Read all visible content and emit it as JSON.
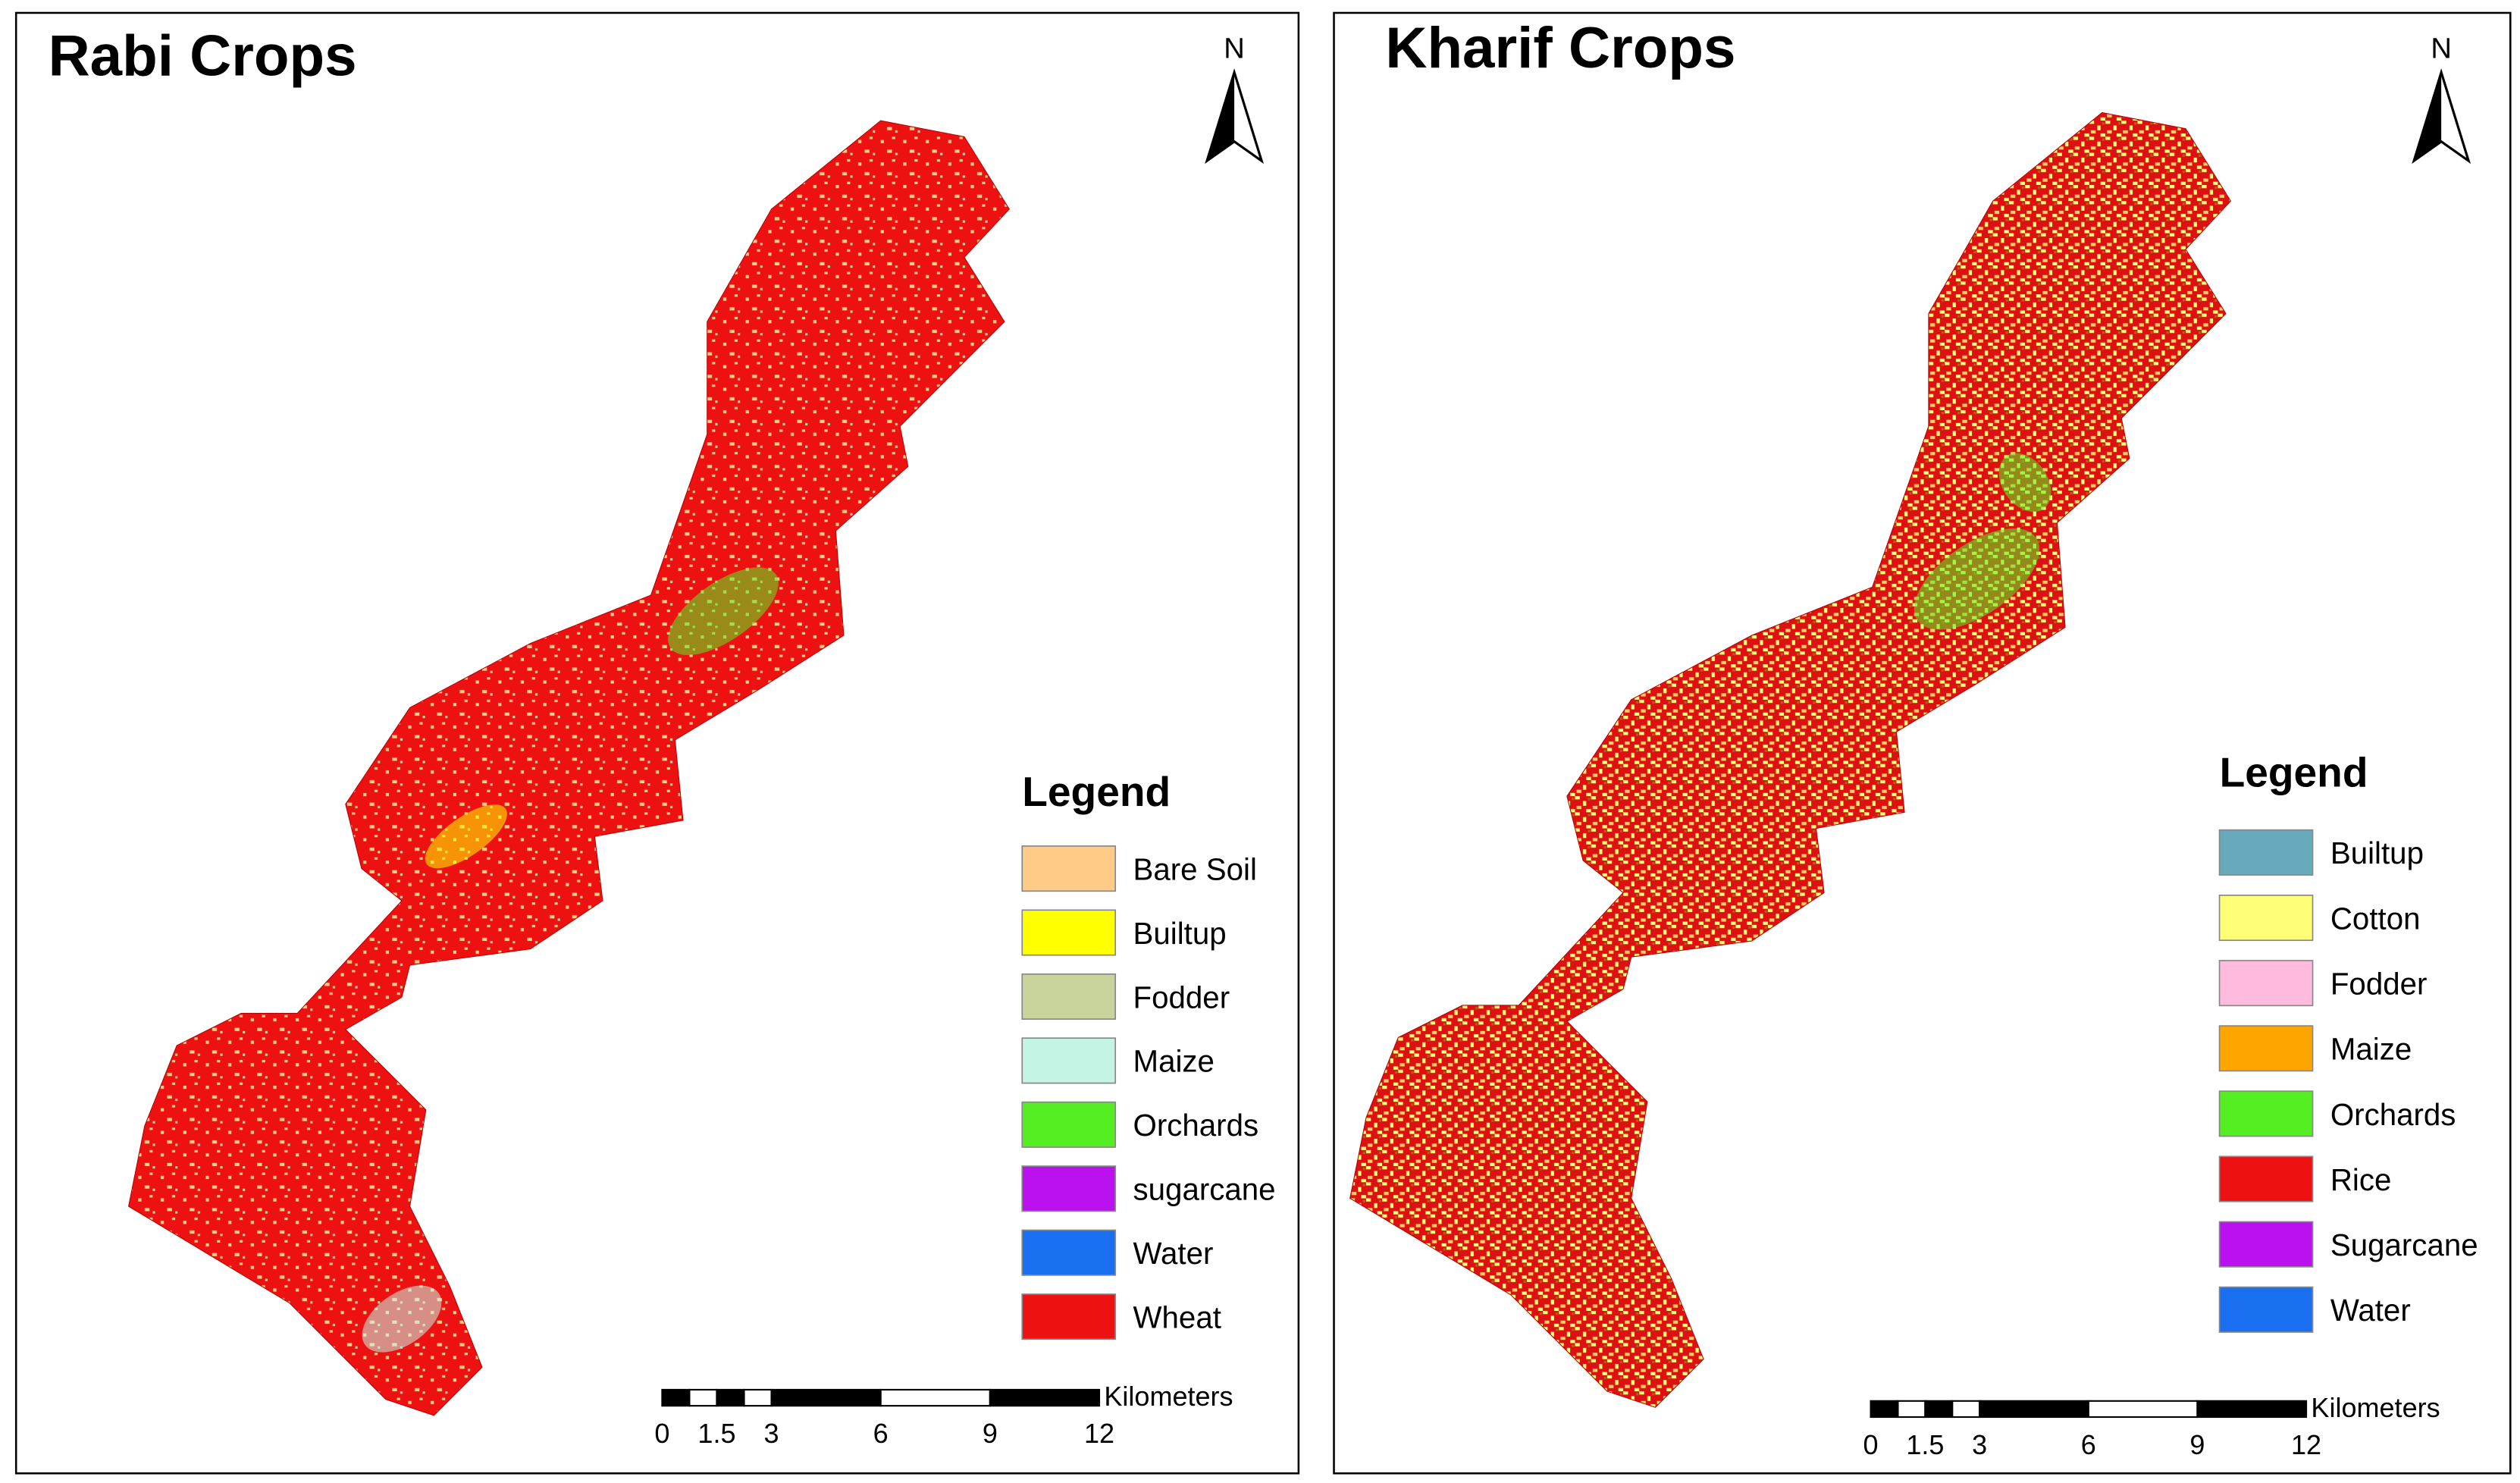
{
  "panels": [
    {
      "title": "Rabi Crops",
      "north": "N",
      "legend": {
        "title": "Legend",
        "items": [
          {
            "label": "Bare Soil",
            "color": "#ffcc88"
          },
          {
            "label": "Builtup",
            "color": "#ffff00"
          },
          {
            "label": "Fodder",
            "color": "#c8d49c"
          },
          {
            "label": "Maize",
            "color": "#c4f5e4"
          },
          {
            "label": "Orchards",
            "color": "#55ee22"
          },
          {
            "label": "sugarcane",
            "color": "#bb11ee"
          },
          {
            "label": "Water",
            "color": "#1a6ef0"
          },
          {
            "label": "Wheat",
            "color": "#ee1111"
          }
        ]
      },
      "scale_bar": {
        "unit": "Kilometers",
        "ticks": [
          0,
          1.5,
          3,
          6,
          9,
          12
        ]
      }
    },
    {
      "title": "Kharif Crops",
      "north": "N",
      "legend": {
        "title": "Legend",
        "items": [
          {
            "label": "Builtup",
            "color": "#66aabb"
          },
          {
            "label": "Cotton",
            "color": "#ffff77"
          },
          {
            "label": "Fodder",
            "color": "#ffbbdd"
          },
          {
            "label": "Maize",
            "color": "#ffa500"
          },
          {
            "label": "Orchards",
            "color": "#55ee22"
          },
          {
            "label": "Rice",
            "color": "#ee1111"
          },
          {
            "label": "Sugarcane",
            "color": "#bb11ee"
          },
          {
            "label": "Water",
            "color": "#1a6ef0"
          }
        ]
      },
      "scale_bar": {
        "unit": "Kilometers",
        "ticks": [
          0,
          1.5,
          3,
          6,
          9,
          12
        ]
      }
    }
  ]
}
